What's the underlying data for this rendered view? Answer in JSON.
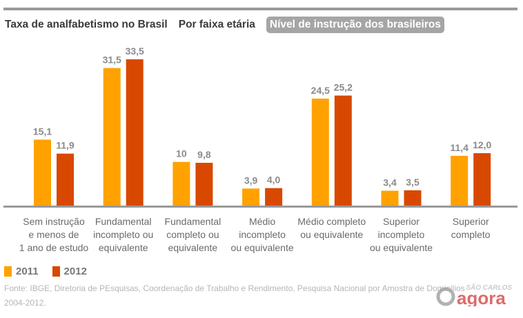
{
  "tabs": [
    {
      "label": "Taxa de analfabetismo no Brasil",
      "active": false
    },
    {
      "label": "Por faixa etária",
      "active": false
    },
    {
      "label": "Nível de instrução dos brasileiros",
      "active": true
    }
  ],
  "chart_data": {
    "type": "bar",
    "categories": [
      [
        "Sem instrução",
        "e menos de",
        "1 ano de estudo"
      ],
      [
        "Fundamental",
        "incompleto ou",
        "equivalente"
      ],
      [
        "Fundamental",
        "completo ou",
        "equivalente"
      ],
      [
        "Médio",
        "incompleto",
        "ou equivalente"
      ],
      [
        "Médio completo",
        "ou equivalente"
      ],
      [
        "Superior",
        "incompleto",
        "ou equivalente"
      ],
      [
        "Superior",
        "completo"
      ]
    ],
    "series": [
      {
        "name": "2011",
        "color": "#FFA200",
        "values": [
          15.1,
          31.5,
          10,
          3.9,
          24.5,
          3.4,
          11.4
        ],
        "labels": [
          "15,1",
          "31,5",
          "10",
          "3,9",
          "24,5",
          "3,4",
          "11,4"
        ]
      },
      {
        "name": "2012",
        "color": "#D94800",
        "values": [
          11.9,
          33.5,
          9.8,
          4.0,
          25.2,
          3.5,
          12.0
        ],
        "labels": [
          "11,9",
          "33,5",
          "9,8",
          "4,0",
          "25,2",
          "3,5",
          "12,0"
        ]
      }
    ],
    "ylim": [
      0,
      33.5
    ],
    "grid": false,
    "legend": "bottom-left"
  },
  "source": {
    "line1": "Fonte: IBGE, Diretoria de PEsquisas, Coordenação de Trabalho e Rendimento, Pesquisa Nacional por Amostra de Domicílios",
    "line2": "2004-2012."
  },
  "watermark": {
    "top": "SÃO CARLOS",
    "brand": "agora"
  }
}
